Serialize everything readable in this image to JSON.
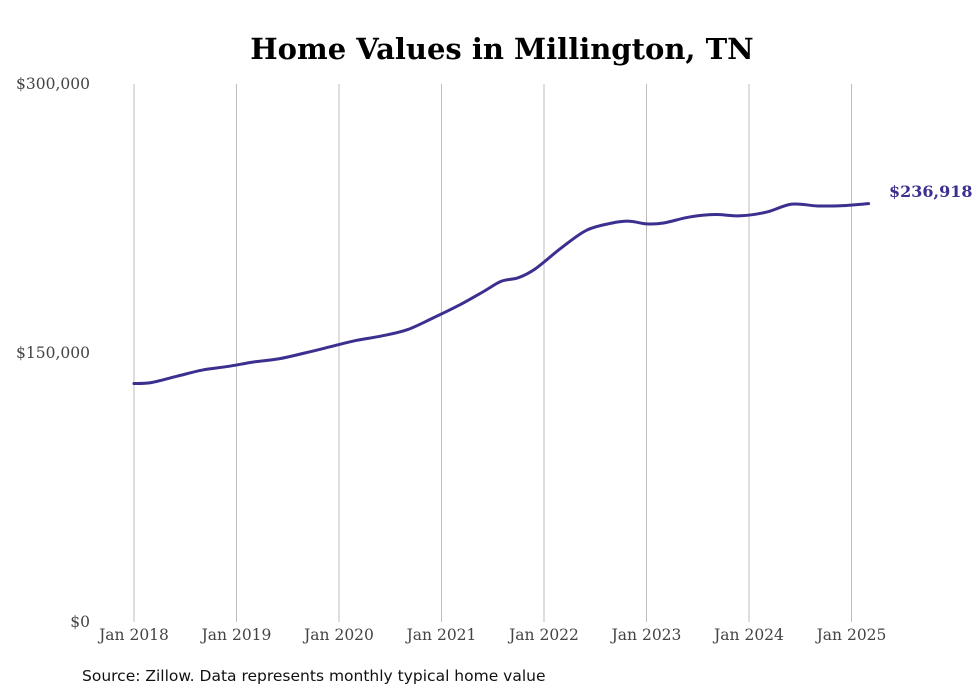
{
  "chart_data": {
    "type": "line",
    "title": "Home Values in Millington, TN",
    "xlabel": "",
    "ylabel": "",
    "x_tick_labels": [
      "Jan 2018",
      "Jan 2019",
      "Jan 2020",
      "Jan 2021",
      "Jan 2022",
      "Jan 2023",
      "Jan 2024",
      "Jan 2025"
    ],
    "y_tick_labels": [
      "$0",
      "$150,000",
      "$300,000"
    ],
    "y_ticks": [
      0,
      150000,
      300000
    ],
    "ylim": [
      0,
      300000
    ],
    "xlim": [
      "2018-01",
      "2025-03"
    ],
    "grid": "vertical",
    "series": [
      {
        "color": "#3b2f8f",
        "points": [
          [
            "2018-01",
            133000
          ],
          [
            "2018-03",
            133500
          ],
          [
            "2018-06",
            137000
          ],
          [
            "2018-09",
            140500
          ],
          [
            "2018-12",
            142500
          ],
          [
            "2019-03",
            145000
          ],
          [
            "2019-06",
            146800
          ],
          [
            "2019-09",
            150000
          ],
          [
            "2019-12",
            153500
          ],
          [
            "2020-03",
            157000
          ],
          [
            "2020-06",
            159500
          ],
          [
            "2020-09",
            163000
          ],
          [
            "2020-12",
            169500
          ],
          [
            "2021-03",
            176500
          ],
          [
            "2021-06",
            184500
          ],
          [
            "2021-08",
            190000
          ],
          [
            "2021-10",
            192000
          ],
          [
            "2021-12",
            197000
          ],
          [
            "2022-03",
            208500
          ],
          [
            "2022-06",
            218500
          ],
          [
            "2022-09",
            222500
          ],
          [
            "2022-11",
            223500
          ],
          [
            "2023-01",
            222000
          ],
          [
            "2023-03",
            222500
          ],
          [
            "2023-06",
            225800
          ],
          [
            "2023-09",
            227200
          ],
          [
            "2023-12",
            226500
          ],
          [
            "2024-03",
            228500
          ],
          [
            "2024-06",
            233000
          ],
          [
            "2024-09",
            232000
          ],
          [
            "2024-12",
            232200
          ],
          [
            "2025-03",
            233300
          ]
        ]
      }
    ],
    "end_label": "$236,918"
  },
  "footer": {
    "source": "Source: Zillow. Data represents monthly typical home value"
  }
}
